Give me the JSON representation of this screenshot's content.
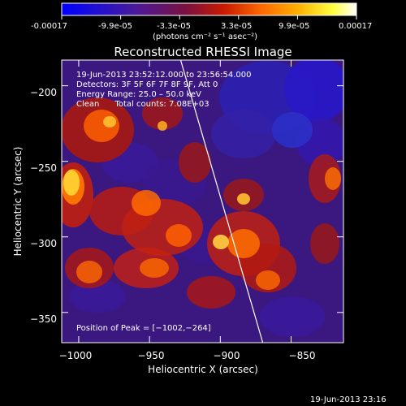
{
  "colorbar": {
    "tick_labels": [
      "-0.00017",
      "-9.9e-05",
      "-3.3e-05",
      "3.3e-05",
      "9.9e-05",
      "0.00017"
    ],
    "units_label": "(photons cm⁻² s⁻¹ asec⁻²)",
    "colors": [
      "#0000ff",
      "#2010d0",
      "#4a1a9a",
      "#7a1040",
      "#c81a00",
      "#ff6a00",
      "#ffaf00",
      "#ffff40",
      "#ffffff"
    ]
  },
  "plot": {
    "title": "Reconstructed RHESSI Image",
    "xlabel": "Heliocentric X (arcsec)",
    "ylabel": "Heliocentric Y (arcsec)",
    "xlim": [
      -1012,
      -813
    ],
    "ylim": [
      -370,
      -183
    ],
    "xticks": [
      -1000,
      -950,
      -900,
      -850
    ],
    "yticks": [
      -200,
      -250,
      -300,
      -350
    ],
    "xtick_labels": [
      "−1000",
      "−950",
      "−900",
      "−850"
    ],
    "ytick_labels": [
      "−200",
      "−250",
      "−300",
      "−350"
    ],
    "limb_line": [
      [
        -928,
        -183
      ],
      [
        -870,
        -370
      ]
    ]
  },
  "annotations": {
    "time_range": "19-Jun-2013 23:52:12.000 to 23:56:54.000",
    "detectors": "Detectors: 3F 5F 6F 7F 8F 9F, Att 0",
    "energy_range": "Energy Range: 25.0 – 50.0 keV",
    "clean_counts": "Clean      Total counts: 7.08E+03",
    "peak_position": "Position of Peak = [−1002,−264]"
  },
  "footer": {
    "timestamp": "19-Jun-2013 23:16"
  }
}
